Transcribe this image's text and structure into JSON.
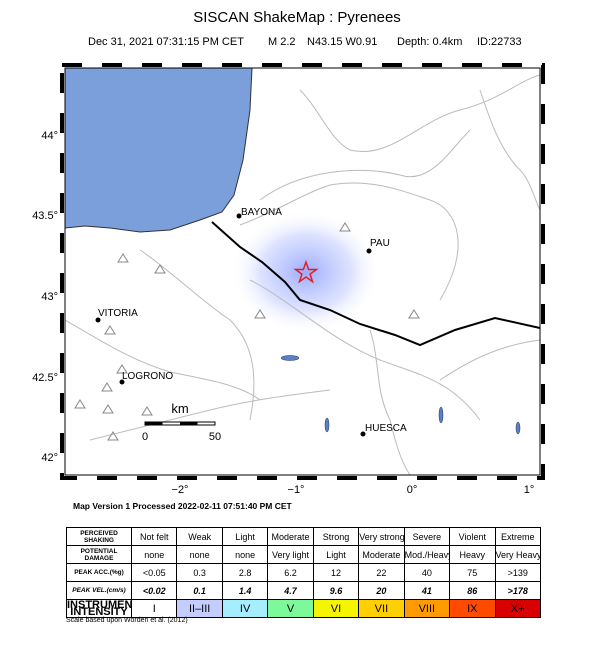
{
  "header": {
    "title": "SISCAN ShakeMap : Pyrenees",
    "date": "Dec 31, 2021 07:31:15 PM CET",
    "magnitude": "M 2.2",
    "location": "N43.15 W0.91",
    "depth": "Depth: 0.4km",
    "id": "ID:22733"
  },
  "map": {
    "lat_labels": [
      "44°",
      "43.5°",
      "43°",
      "42.5°",
      "42°"
    ],
    "lon_labels": [
      "−2°",
      "−1°",
      "0°",
      "1°"
    ],
    "cities": [
      "BAYONA",
      "PAU",
      "VITORIA",
      "LOGRONO",
      "HUESCA"
    ],
    "scale": {
      "unit": "km",
      "start": "0",
      "end": "50"
    }
  },
  "footer": {
    "version": "Map Version 1 Processed 2022-02-11 07:51:40 PM CET",
    "credit": "Scale based upon Worden et al. (2012)"
  },
  "table": {
    "rows": [
      {
        "label": "PERCEIVED SHAKING",
        "cells": [
          "Not felt",
          "Weak",
          "Light",
          "Moderate",
          "Strong",
          "Very strong",
          "Severe",
          "Violent",
          "Extreme"
        ]
      },
      {
        "label": "POTENTIAL DAMAGE",
        "cells": [
          "none",
          "none",
          "none",
          "Very light",
          "Light",
          "Moderate",
          "Mod./Heavy",
          "Heavy",
          "Very Heavy"
        ]
      },
      {
        "label": "PEAK ACC.(%g)",
        "cells": [
          "<0.05",
          "0.3",
          "2.8",
          "6.2",
          "12",
          "22",
          "40",
          "75",
          ">139"
        ]
      },
      {
        "label": "PEAK VEL.(cm/s)",
        "cells": [
          "<0.02",
          "0.1",
          "1.4",
          "4.7",
          "9.6",
          "20",
          "41",
          "86",
          ">178"
        ]
      },
      {
        "label": "INSTRUMENTAL INTENSITY",
        "cells": [
          "I",
          "II–III",
          "IV",
          "V",
          "VI",
          "VII",
          "VIII",
          "IX",
          "X+"
        ]
      }
    ]
  }
}
